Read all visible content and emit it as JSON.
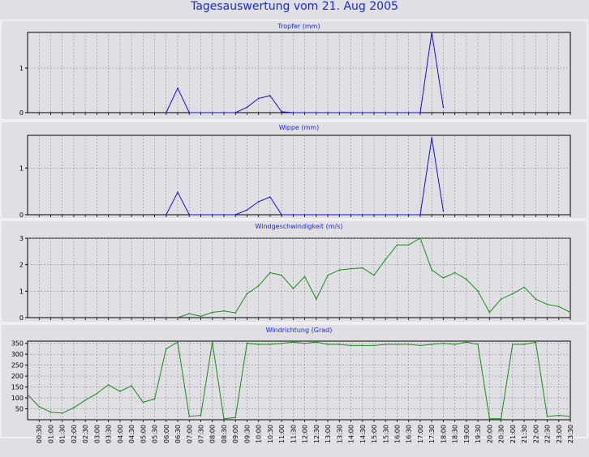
{
  "page": {
    "title": "Tagesauswertung vom 21. Aug 2005"
  },
  "chart_data": [
    {
      "type": "line",
      "title": "Tropfer (mm)",
      "color": "#1010d0",
      "ylim": [
        0,
        1.8
      ],
      "yticks": [
        0,
        1
      ],
      "grid": true,
      "x": [
        "00:00",
        "00:30",
        "01:00",
        "01:30",
        "02:00",
        "02:30",
        "03:00",
        "03:30",
        "04:00",
        "04:30",
        "05:00",
        "05:30",
        "06:00",
        "06:30",
        "07:00",
        "07:30",
        "08:00",
        "08:30",
        "09:00",
        "09:30",
        "10:00",
        "10:30",
        "11:00",
        "11:30",
        "12:00",
        "12:30",
        "13:00",
        "13:30",
        "14:00",
        "14:30",
        "15:00",
        "15:30",
        "16:00",
        "16:30",
        "17:00",
        "17:30",
        "18:00",
        "18:30",
        "19:00",
        "19:30",
        "20:00",
        "20:30",
        "21:00",
        "21:30",
        "22:00",
        "22:30",
        "23:00",
        "23:30"
      ],
      "values": [
        0,
        0,
        0,
        0,
        0,
        0,
        0,
        0,
        0,
        0,
        0,
        0,
        0,
        0.55,
        0,
        0,
        0,
        0,
        0,
        0.12,
        0.32,
        0.38,
        0.02,
        0,
        0,
        0,
        0,
        0,
        0,
        0,
        0,
        0,
        0,
        0,
        0,
        1.8,
        0.12,
        0,
        0,
        0,
        0,
        0,
        0,
        0,
        0,
        0,
        0,
        0
      ],
      "draw_from": 12,
      "draw_to": 36
    },
    {
      "type": "line",
      "title": "Wippe (mm)",
      "color": "#1010d0",
      "ylim": [
        0,
        1.7
      ],
      "yticks": [
        0,
        1
      ],
      "grid": true,
      "values": [
        0,
        0,
        0,
        0,
        0,
        0,
        0,
        0,
        0,
        0,
        0,
        0,
        0,
        0.48,
        0,
        0,
        0,
        0,
        0,
        0.1,
        0.28,
        0.38,
        0,
        0,
        0,
        0,
        0,
        0,
        0,
        0,
        0,
        0,
        0,
        0,
        0,
        1.65,
        0.08,
        0,
        0,
        0,
        0,
        0,
        0,
        0,
        0,
        0,
        0,
        0
      ],
      "draw_from": 12,
      "draw_to": 36
    },
    {
      "type": "line",
      "title": "Windgeschwindigkeit (m/s)",
      "color": "#1a8a1a",
      "ylim": [
        0,
        3
      ],
      "yticks": [
        0,
        1,
        2,
        3
      ],
      "grid": true,
      "values": [
        0,
        0,
        0,
        0,
        0,
        0,
        0,
        0,
        0,
        0,
        0,
        0,
        0,
        0,
        0.15,
        0.05,
        0.2,
        0.25,
        0.18,
        0.9,
        1.2,
        1.7,
        1.6,
        1.1,
        1.55,
        0.7,
        1.6,
        1.8,
        1.85,
        1.88,
        1.6,
        2.2,
        2.75,
        2.75,
        3.0,
        1.8,
        1.5,
        1.7,
        1.45,
        1.0,
        0.2,
        0.7,
        0.9,
        1.15,
        0.7,
        0.5,
        0.42,
        0.2
      ],
      "draw_from": 13,
      "draw_to": 47
    },
    {
      "type": "line",
      "title": "Windrichtung (Grad)",
      "color": "#1a8a1a",
      "ylim": [
        0,
        360
      ],
      "yticks": [
        50,
        100,
        150,
        200,
        250,
        300,
        350
      ],
      "grid": true,
      "values": [
        115,
        60,
        35,
        30,
        55,
        90,
        120,
        160,
        130,
        155,
        80,
        95,
        325,
        355,
        15,
        20,
        355,
        5,
        10,
        350,
        345,
        345,
        350,
        355,
        350,
        355,
        345,
        345,
        340,
        340,
        340,
        345,
        345,
        345,
        340,
        345,
        350,
        345,
        355,
        345,
        5,
        5,
        345,
        345,
        355,
        15,
        20,
        15
      ],
      "draw_from": 0,
      "draw_to": 47
    }
  ]
}
